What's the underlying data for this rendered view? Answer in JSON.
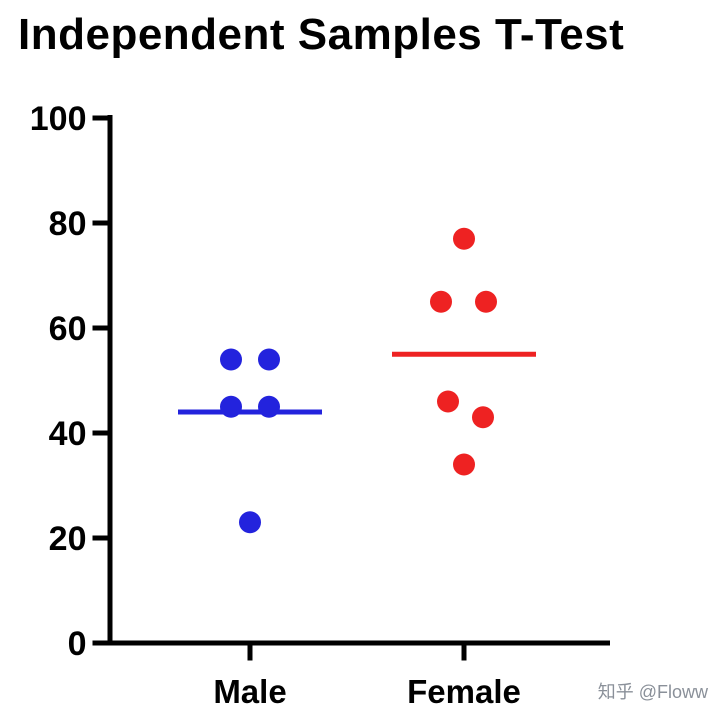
{
  "title": "Independent Samples T-Test",
  "watermark": "知乎 @Floww",
  "colors": {
    "male": "#2323DD",
    "female": "#EE2222",
    "axis": "#000000",
    "watermark": "#8a9099"
  },
  "chart_data": {
    "type": "scatter",
    "title": "Independent Samples T-Test",
    "categories": [
      "Male",
      "Female"
    ],
    "xlabel": "",
    "ylabel": "",
    "ylim": [
      0,
      100
    ],
    "yticks": [
      0,
      20,
      40,
      60,
      80,
      100
    ],
    "grid": false,
    "legend": "none",
    "series": [
      {
        "name": "Male",
        "color": "#2323DD",
        "mean": 44,
        "values": [
          54,
          54,
          45,
          45,
          23
        ],
        "points": [
          {
            "value": 54,
            "dx": -19
          },
          {
            "value": 54,
            "dx": 19
          },
          {
            "value": 45,
            "dx": -19
          },
          {
            "value": 45,
            "dx": 19
          },
          {
            "value": 23,
            "dx": 0
          }
        ]
      },
      {
        "name": "Female",
        "color": "#EE2222",
        "mean": 55,
        "values": [
          77,
          65,
          65,
          46,
          43,
          34
        ],
        "points": [
          {
            "value": 77,
            "dx": 0
          },
          {
            "value": 65,
            "dx": -23
          },
          {
            "value": 65,
            "dx": 22
          },
          {
            "value": 46,
            "dx": -16
          },
          {
            "value": 43,
            "dx": 19
          },
          {
            "value": 34,
            "dx": 0
          }
        ]
      }
    ]
  }
}
